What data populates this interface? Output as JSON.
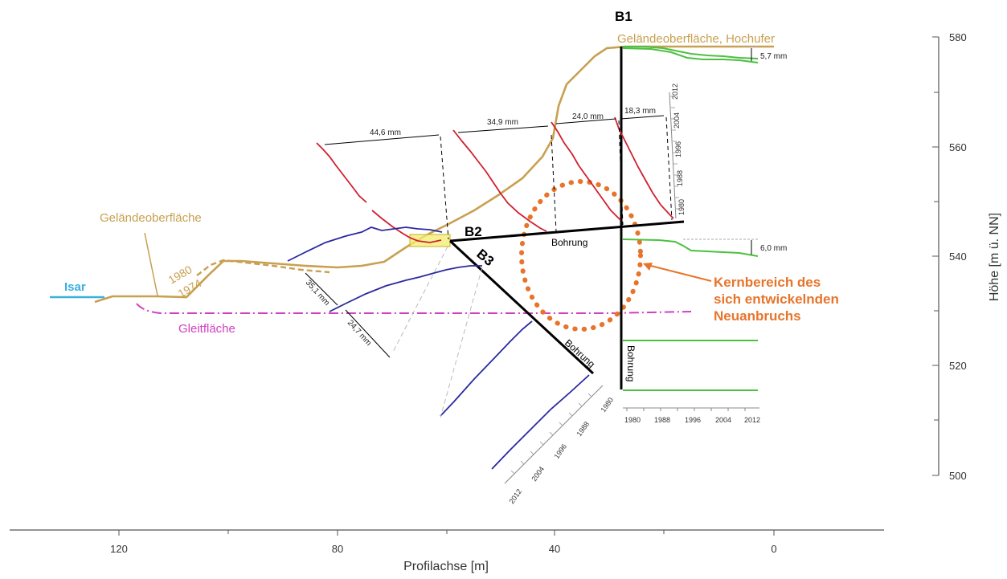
{
  "x_axis": {
    "label": "Profilachse  [m]",
    "ticks": [
      "120",
      "80",
      "40",
      "0"
    ]
  },
  "y_axis": {
    "label": "Höhe  [m ü. NN]",
    "ticks": [
      "580",
      "560",
      "540",
      "520",
      "500"
    ]
  },
  "labels": {
    "b1": "B1",
    "b2": "B2",
    "b3": "B3",
    "isar": "Isar",
    "gelaende_left": "Geländeoberfläche",
    "gelaende_top": "Geländeoberfläche, Hochufer",
    "y1980": "1980",
    "y1974": "1974",
    "gleitflaeche": "Gleitfläche",
    "bohrung_b2": "Bohrung",
    "bohrung_b3": "Bohrung",
    "bohrung_b1": "Bohrung",
    "kern1": "Kernbereich des",
    "kern2": "sich entwickelnden",
    "kern3": "Neuanbruchs"
  },
  "measurements": {
    "m446": "44,6 mm",
    "m349": "34,9 mm",
    "m240": "24,0 mm",
    "m183": "18,3 mm",
    "m57": "5,7 mm",
    "m60": "6,0 mm",
    "m351": "35,1 mm",
    "m247": "24,7 mm"
  },
  "time_axes": {
    "b1_years": [
      "1980",
      "1988",
      "1996",
      "2004",
      "2012"
    ],
    "b2_years": [
      "1980",
      "1988",
      "1996",
      "2004",
      "2012"
    ],
    "b3_years": [
      "2012",
      "2004",
      "1996",
      "1988",
      "1980"
    ]
  },
  "colors": {
    "terrain": "#c8a050",
    "b2_displacement": "#d02030",
    "b3_displacement": "#2a2aa0",
    "b1_displacement": "#4cc040",
    "isar": "#3ab0e0",
    "slip_surface": "#d040c0",
    "core_zone": "#e8742a",
    "borehole": "#000000"
  }
}
